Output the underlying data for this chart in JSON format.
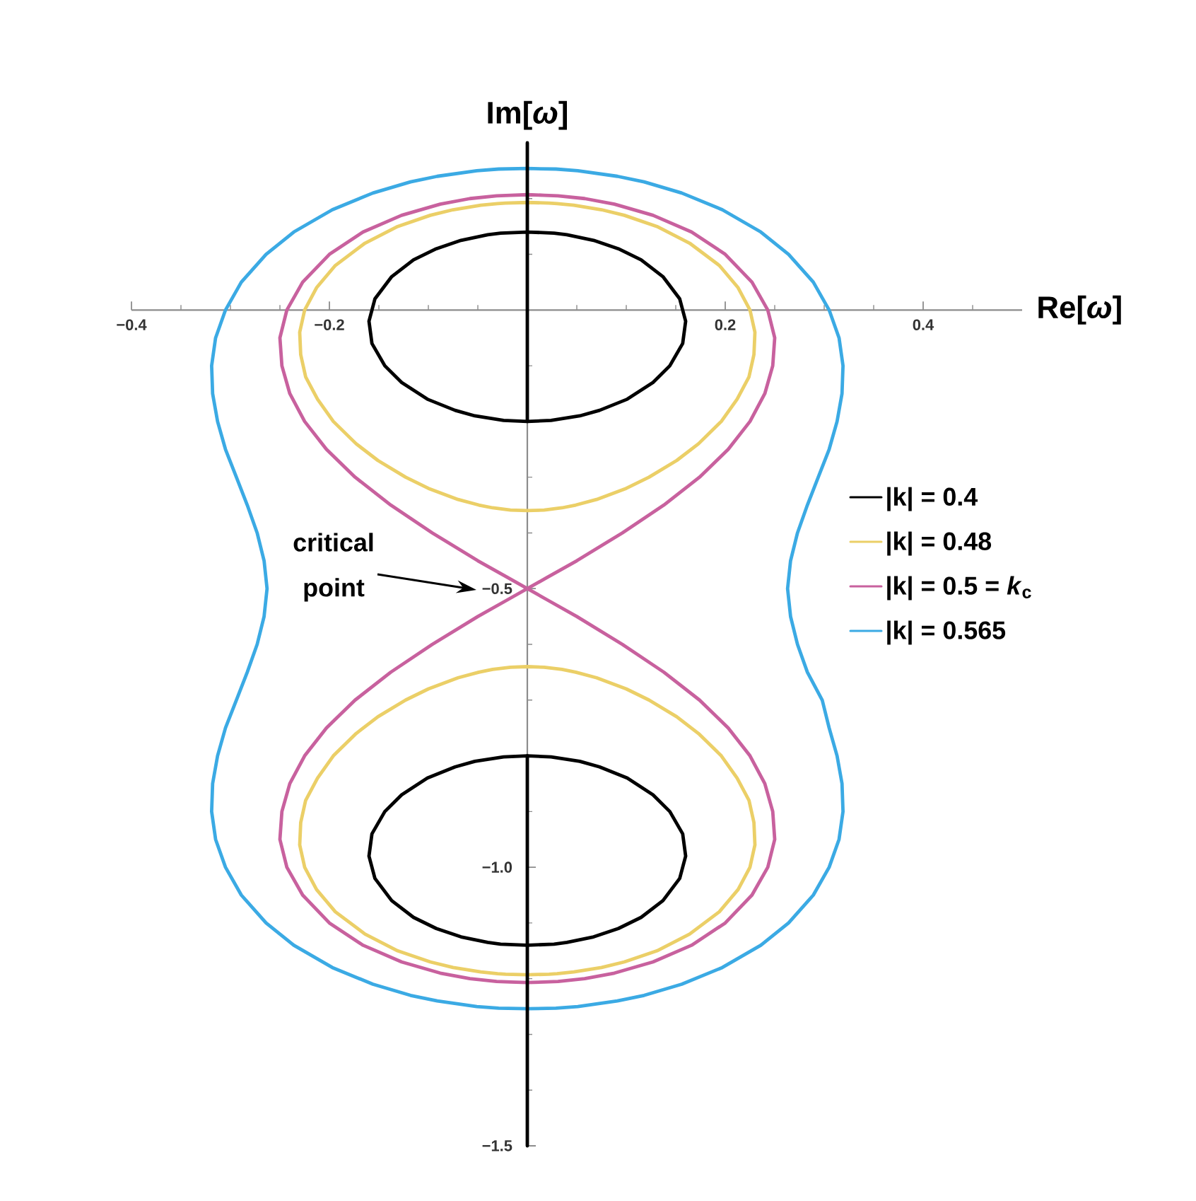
{
  "chart_data": {
    "type": "line",
    "xlabel": "Re[*ω*]",
    "ylabel": "Im[*ω*]",
    "xlim": [
      -0.4,
      0.5
    ],
    "ylim": [
      -1.5,
      0.3
    ],
    "xticks": [
      {
        "value": -0.4,
        "label": "−0.4"
      },
      {
        "value": -0.35,
        "label": null
      },
      {
        "value": -0.3,
        "label": null
      },
      {
        "value": -0.25,
        "label": null
      },
      {
        "value": -0.2,
        "label": "−0.2"
      },
      {
        "value": -0.15,
        "label": null
      },
      {
        "value": -0.1,
        "label": null
      },
      {
        "value": -0.05,
        "label": null
      },
      {
        "value": 0.05,
        "label": null
      },
      {
        "value": 0.1,
        "label": null
      },
      {
        "value": 0.15,
        "label": null
      },
      0.2,
      {
        "value": 0.25,
        "label": null
      },
      {
        "value": 0.3,
        "label": null
      },
      {
        "value": 0.35,
        "label": null
      },
      0.4,
      {
        "value": 0.45,
        "label": null
      }
    ],
    "yticks": [
      {
        "value": 0.2,
        "label": null
      },
      {
        "value": 0.1,
        "label": null
      },
      {
        "value": -0.1,
        "label": null
      },
      {
        "value": -0.2,
        "label": null
      },
      {
        "value": -0.3,
        "label": null
      },
      {
        "value": -0.4,
        "label": null
      },
      {
        "value": -0.5,
        "label": "−0.5"
      },
      {
        "value": -0.6,
        "label": null
      },
      {
        "value": -0.7,
        "label": null
      },
      {
        "value": -0.8,
        "label": null
      },
      {
        "value": -0.9,
        "label": null
      },
      {
        "value": -1,
        "label": "−1.0"
      },
      {
        "value": -1.1,
        "label": null
      },
      {
        "value": -1.2,
        "label": null
      },
      {
        "value": -1.3,
        "label": null
      },
      {
        "value": -1.4,
        "label": null
      },
      {
        "value": -1.5,
        "label": "−1.5"
      }
    ],
    "legend": "right",
    "marker": "none",
    "series": [
      {
        "name": "|k| = 0.4",
        "color": "#000000",
        "x": [
          -0.16,
          -0.154,
          -0.137,
          -0.115,
          -0.092,
          -0.067,
          -0.04,
          -0.027,
          0,
          0.027,
          0.04,
          0.067,
          0.092,
          0.115,
          0.137,
          0.154,
          0.16,
          null,
          -0.16,
          -0.157,
          -0.144,
          -0.127,
          -0.101,
          -0.073,
          -0.053,
          -0.024,
          0,
          0.024,
          0.053,
          0.073,
          0.101,
          0.127,
          0.144,
          0.157,
          0.16,
          null,
          -0.16,
          -0.157,
          -0.144,
          -0.127,
          -0.101,
          -0.073,
          -0.053,
          -0.024,
          0,
          0.024,
          0.053,
          0.073,
          0.101,
          0.127,
          0.144,
          0.157,
          0.16,
          null,
          -0.16,
          -0.154,
          -0.137,
          -0.115,
          -0.092,
          -0.067,
          -0.04,
          -0.027,
          0,
          0.027,
          0.04,
          0.067,
          0.092,
          0.115,
          0.137,
          0.154,
          0.16
        ],
        "values": [
          -0.02,
          0.02,
          0.06,
          0.09,
          0.11,
          0.125,
          0.135,
          0.138,
          0.14,
          0.138,
          0.135,
          0.125,
          0.11,
          0.09,
          0.06,
          0.02,
          -0.02,
          null,
          -0.02,
          -0.06,
          -0.1,
          -0.13,
          -0.16,
          -0.18,
          -0.19,
          -0.198,
          -0.2,
          -0.198,
          -0.19,
          -0.18,
          -0.16,
          -0.13,
          -0.1,
          -0.06,
          -0.02,
          null,
          -0.98,
          -0.94,
          -0.9,
          -0.87,
          -0.84,
          -0.82,
          -0.81,
          -0.802,
          -0.8,
          -0.802,
          -0.81,
          -0.82,
          -0.84,
          -0.87,
          -0.9,
          -0.94,
          -0.98,
          null,
          -0.98,
          -1.02,
          -1.06,
          -1.09,
          -1.11,
          -1.125,
          -1.135,
          -1.138,
          -1.14,
          -1.138,
          -1.135,
          -1.125,
          -1.11,
          -1.09,
          -1.06,
          -1.02,
          -0.98
        ]
      },
      {
        "name": "|k| = 0.48",
        "color": "#EBCF67",
        "x": [
          -0.23,
          -0.225,
          -0.213,
          -0.194,
          -0.164,
          -0.131,
          -0.098,
          -0.075,
          -0.047,
          -0.03,
          -0.022,
          0,
          0.022,
          0.03,
          0.047,
          0.075,
          0.098,
          0.131,
          0.164,
          0.194,
          0.213,
          0.225,
          0.23,
          null,
          -0.23,
          -0.229,
          -0.224,
          -0.212,
          -0.196,
          -0.173,
          -0.151,
          -0.123,
          -0.1,
          -0.07,
          -0.049,
          -0.035,
          -0.017,
          0,
          0.017,
          0.035,
          0.049,
          0.07,
          0.1,
          0.123,
          0.151,
          0.173,
          0.196,
          0.212,
          0.224,
          0.229,
          0.23,
          null,
          -0.23,
          -0.229,
          -0.224,
          -0.212,
          -0.196,
          -0.173,
          -0.151,
          -0.123,
          -0.1,
          -0.07,
          -0.049,
          -0.035,
          -0.017,
          0,
          0.017,
          0.035,
          0.049,
          0.07,
          0.1,
          0.123,
          0.151,
          0.173,
          0.196,
          0.212,
          0.224,
          0.229,
          0.23,
          null,
          -0.23,
          -0.225,
          -0.213,
          -0.194,
          -0.164,
          -0.131,
          -0.098,
          -0.075,
          -0.047,
          -0.03,
          -0.022,
          0,
          0.022,
          0.03,
          0.047,
          0.075,
          0.098,
          0.131,
          0.164,
          0.194,
          0.213,
          0.225,
          0.23
        ],
        "values": [
          -0.04,
          0,
          0.04,
          0.08,
          0.12,
          0.15,
          0.17,
          0.18,
          0.188,
          0.191,
          0.192,
          0.193,
          0.192,
          0.191,
          0.188,
          0.18,
          0.17,
          0.15,
          0.12,
          0.08,
          0.04,
          0,
          -0.04,
          null,
          -0.04,
          -0.08,
          -0.12,
          -0.16,
          -0.2,
          -0.24,
          -0.27,
          -0.3,
          -0.32,
          -0.34,
          -0.35,
          -0.355,
          -0.359,
          -0.36,
          -0.359,
          -0.355,
          -0.35,
          -0.34,
          -0.32,
          -0.3,
          -0.27,
          -0.24,
          -0.2,
          -0.16,
          -0.12,
          -0.08,
          -0.04,
          null,
          -0.96,
          -0.92,
          -0.88,
          -0.84,
          -0.8,
          -0.76,
          -0.73,
          -0.7,
          -0.68,
          -0.66,
          -0.65,
          -0.645,
          -0.641,
          -0.64,
          -0.641,
          -0.645,
          -0.65,
          -0.66,
          -0.68,
          -0.7,
          -0.73,
          -0.76,
          -0.8,
          -0.84,
          -0.88,
          -0.92,
          -0.96,
          null,
          -0.96,
          -1,
          -1.04,
          -1.08,
          -1.12,
          -1.15,
          -1.17,
          -1.18,
          -1.188,
          -1.191,
          -1.192,
          -1.193,
          -1.192,
          -1.191,
          -1.188,
          -1.18,
          -1.17,
          -1.15,
          -1.12,
          -1.08,
          -1.04,
          -1,
          -0.96
        ]
      },
      {
        "name": "|k| = 0.5 = *k*$_{c}$",
        "color": "#C8619E",
        "x": [
          -0.25,
          -0.243,
          -0.227,
          -0.2,
          -0.166,
          -0.127,
          -0.088,
          -0.058,
          -0.031,
          -0.017,
          0,
          0.017,
          0.031,
          0.058,
          0.088,
          0.127,
          0.166,
          0.2,
          0.227,
          0.243,
          0.25,
          null,
          -0.25,
          -0.248,
          -0.24,
          -0.225,
          -0.203,
          -0.174,
          -0.138,
          -0.096,
          -0.05,
          -0.02,
          0.02,
          0.05,
          0.096,
          0.138,
          0.174,
          0.203,
          0.225,
          0.24,
          0.248,
          0.25,
          null,
          -0.25,
          -0.248,
          -0.24,
          -0.225,
          -0.203,
          -0.174,
          -0.138,
          -0.096,
          -0.05,
          -0.02,
          0.02,
          0.05,
          0.096,
          0.138,
          0.174,
          0.203,
          0.225,
          0.24,
          0.248,
          0.25,
          null,
          -0.25,
          -0.243,
          -0.227,
          -0.2,
          -0.166,
          -0.127,
          -0.088,
          -0.058,
          -0.031,
          -0.017,
          0,
          0.017,
          0.031,
          0.058,
          0.088,
          0.127,
          0.166,
          0.2,
          0.227,
          0.243,
          0.25
        ],
        "values": [
          -0.05,
          0,
          0.05,
          0.1,
          0.14,
          0.17,
          0.19,
          0.2,
          0.205,
          0.206,
          0.207,
          0.206,
          0.205,
          0.2,
          0.19,
          0.17,
          0.14,
          0.1,
          0.05,
          0,
          -0.05,
          null,
          -0.05,
          -0.1,
          -0.15,
          -0.2,
          -0.25,
          -0.3,
          -0.35,
          -0.4,
          -0.45,
          -0.48,
          -0.52,
          -0.55,
          -0.6,
          -0.65,
          -0.7,
          -0.75,
          -0.8,
          -0.85,
          -0.9,
          -0.95,
          null,
          -0.95,
          -0.9,
          -0.85,
          -0.8,
          -0.75,
          -0.7,
          -0.65,
          -0.6,
          -0.55,
          -0.52,
          -0.48,
          -0.45,
          -0.4,
          -0.35,
          -0.3,
          -0.25,
          -0.2,
          -0.15,
          -0.1,
          -0.05,
          null,
          -0.95,
          -1,
          -1.05,
          -1.1,
          -1.14,
          -1.17,
          -1.19,
          -1.2,
          -1.205,
          -1.206,
          -1.207,
          -1.206,
          -1.205,
          -1.2,
          -1.19,
          -1.17,
          -1.14,
          -1.1,
          -1.05,
          -1,
          -0.95
        ]
      },
      {
        "name": "|k| = 0.565",
        "color": "#3BAAE4",
        "x": [
          -0.319,
          -0.315,
          -0.305,
          -0.289,
          -0.264,
          -0.236,
          -0.197,
          -0.156,
          -0.118,
          -0.091,
          -0.051,
          -0.029,
          0,
          0.029,
          0.051,
          0.091,
          0.118,
          0.156,
          0.197,
          0.236,
          0.264,
          0.289,
          0.305,
          0.315,
          0.319,
          null,
          0.319,
          0.318,
          0.313,
          0.305,
          0.294,
          0.283,
          0.273,
          0.266,
          0.263,
          0.266,
          0.273,
          0.283,
          0.298,
          0.305,
          0.313,
          0.318,
          0.319,
          null,
          -0.319,
          -0.315,
          -0.305,
          -0.289,
          -0.264,
          -0.236,
          -0.197,
          -0.156,
          -0.118,
          -0.091,
          -0.051,
          -0.029,
          0,
          0.029,
          0.051,
          0.091,
          0.118,
          0.156,
          0.197,
          0.236,
          0.264,
          0.289,
          0.305,
          0.315,
          0.319,
          null,
          -0.319,
          -0.318,
          -0.313,
          -0.305,
          -0.294,
          -0.283,
          -0.273,
          -0.266,
          -0.263,
          -0.266,
          -0.273,
          -0.283,
          -0.294,
          -0.305,
          -0.313,
          -0.318,
          -0.319
        ],
        "values": [
          -0.1,
          -0.05,
          0,
          0.05,
          0.1,
          0.14,
          0.18,
          0.21,
          0.23,
          0.24,
          0.25,
          0.253,
          0.254,
          0.253,
          0.25,
          0.24,
          0.23,
          0.21,
          0.18,
          0.14,
          0.1,
          0.05,
          0,
          -0.05,
          -0.1,
          null,
          -0.1,
          -0.15,
          -0.2,
          -0.25,
          -0.3,
          -0.35,
          -0.4,
          -0.45,
          -0.5,
          -0.55,
          -0.6,
          -0.65,
          -0.7,
          -0.75,
          -0.8,
          -0.85,
          -0.9,
          null,
          -0.9,
          -0.95,
          -1,
          -1.05,
          -1.1,
          -1.14,
          -1.18,
          -1.21,
          -1.23,
          -1.24,
          -1.25,
          -1.253,
          -1.254,
          -1.253,
          -1.25,
          -1.24,
          -1.23,
          -1.21,
          -1.18,
          -1.14,
          -1.1,
          -1.05,
          -1,
          -0.95,
          -0.9,
          null,
          -0.1,
          -0.15,
          -0.2,
          -0.25,
          -0.3,
          -0.35,
          -0.4,
          -0.45,
          -0.5,
          -0.55,
          -0.6,
          -0.65,
          -0.7,
          -0.75,
          -0.8,
          -0.85,
          -0.9
        ]
      },
      {
        "color": "#000000",
        "x": [
          0,
          0
        ],
        "values": [
          0.3,
          -0.2
        ]
      },
      {
        "color": "#000000",
        "x": [
          0,
          0
        ],
        "values": [
          -0.8,
          -1.5
        ]
      }
    ],
    "annotations": [
      "critical point"
    ]
  }
}
